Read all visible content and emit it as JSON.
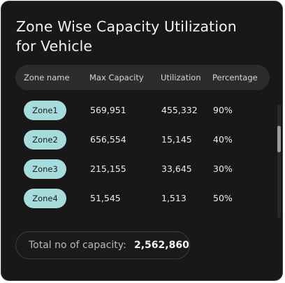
{
  "card": {
    "title": "Zone Wise Capacity Utilization for Vehicle"
  },
  "table": {
    "headers": {
      "zone": "Zone name",
      "max": "Max Capacity",
      "util": "Utilization",
      "pct": "Percentage"
    },
    "rows": [
      {
        "zone": "Zone1",
        "max": "569,951",
        "util": "455,332",
        "pct": "90%"
      },
      {
        "zone": "Zone2",
        "max": "656,554",
        "util": "15,145",
        "pct": "40%"
      },
      {
        "zone": "Zone3",
        "max": "215,155",
        "util": "33,645",
        "pct": "30%"
      },
      {
        "zone": "Zone4",
        "max": "51,545",
        "util": "1,513",
        "pct": "50%"
      }
    ]
  },
  "footer": {
    "total_label": "Total no of capacity:",
    "total_value": "2,562,860"
  },
  "colors": {
    "card_background": "#181818",
    "header_background": "#2c2c2c",
    "zone_pill": "#a7dcdc"
  }
}
